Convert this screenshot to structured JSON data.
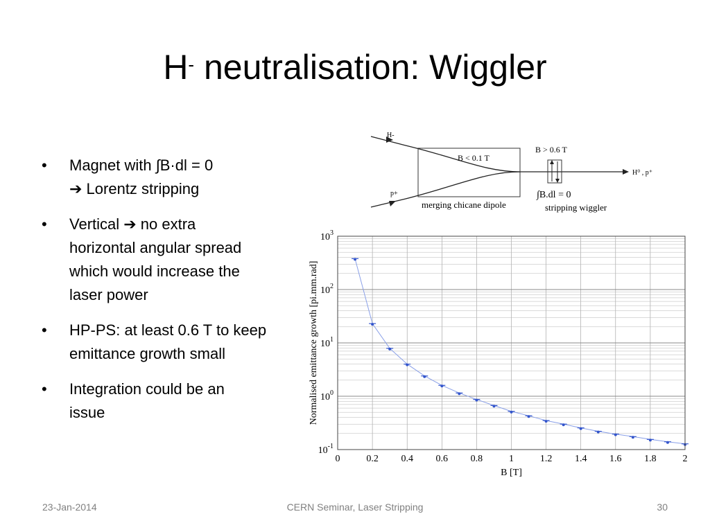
{
  "slide": {
    "title_main": "H",
    "title_sup": "-",
    "title_rest": " neutralisation: Wiggler"
  },
  "bullets": [
    {
      "lines": [
        "Magnet with ∫B·dl = 0",
        "➔ Lorentz stripping"
      ]
    },
    {
      "lines": [
        "Vertical ➔ no extra",
        "horizontal angular spread",
        "which would increase the",
        "laser power"
      ]
    },
    {
      "lines": [
        "HP-PS: at least 0.6 T to keep",
        "emittance growth small"
      ]
    },
    {
      "lines": [
        "Integration could be an",
        "issue"
      ]
    }
  ],
  "diagram": {
    "label_hminus": "H-",
    "label_pplus": "p+",
    "label_chicane_field": "B < 0.1 T",
    "label_wiggler_field": "B > 0.6 T",
    "label_out": "H⁰ , p⁺",
    "label_integral": "∫B.dl = 0",
    "label_chicane": "merging chicane dipole",
    "label_wiggler": "stripping wiggler"
  },
  "chart_data": {
    "type": "scatter",
    "xlabel": "B [T]",
    "ylabel": "Normalised emittance growth [pi.mm.rad]",
    "xlim": [
      0,
      2
    ],
    "ylim": [
      0.1,
      1000
    ],
    "yscale": "log",
    "grid": true,
    "x_ticks": [
      "0",
      "0.2",
      "0.4",
      "0.6",
      "0.8",
      "1",
      "1.2",
      "1.4",
      "1.6",
      "1.8",
      "2"
    ],
    "y_ticks": [
      {
        "base": "10",
        "exp": "-1",
        "value": 0.1
      },
      {
        "base": "10",
        "exp": "0",
        "value": 1
      },
      {
        "base": "10",
        "exp": "1",
        "value": 10
      },
      {
        "base": "10",
        "exp": "2",
        "value": 100
      },
      {
        "base": "10",
        "exp": "3",
        "value": 1000
      }
    ],
    "series": [
      {
        "color": "#3355cc",
        "x": [
          0.1,
          0.2,
          0.3,
          0.4,
          0.5,
          0.6,
          0.7,
          0.8,
          0.9,
          1.0,
          1.1,
          1.2,
          1.3,
          1.4,
          1.5,
          1.6,
          1.7,
          1.8,
          1.9,
          2.0
        ],
        "values": [
          380,
          23,
          7.9,
          4.0,
          2.4,
          1.6,
          1.15,
          0.87,
          0.67,
          0.52,
          0.43,
          0.35,
          0.3,
          0.255,
          0.22,
          0.195,
          0.175,
          0.155,
          0.14,
          0.128
        ]
      }
    ]
  },
  "footer": {
    "date": "23-Jan-2014",
    "center": "CERN Seminar, Laser Stripping",
    "page": "30"
  }
}
